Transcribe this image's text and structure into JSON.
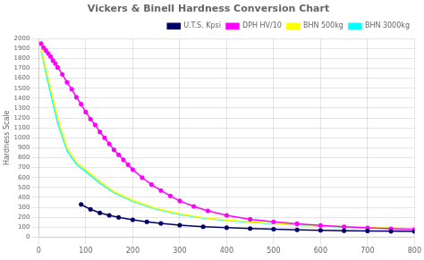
{
  "chart_data": {
    "type": "line",
    "title": "Vickers & Binell Hardness Conversion Chart",
    "ylabel": "Hardness Scale",
    "xlim": [
      0,
      800
    ],
    "xticks": [
      0,
      100,
      200,
      300,
      400,
      500,
      600,
      700,
      800
    ],
    "ylim": [
      0,
      2000
    ],
    "yticks": [
      0,
      100,
      200,
      300,
      400,
      500,
      600,
      700,
      800,
      900,
      1000,
      1100,
      1200,
      1300,
      1400,
      1500,
      1600,
      1700,
      1800,
      1900,
      2000
    ],
    "grid": true,
    "legend": "upper right",
    "series": [
      {
        "name": "U.T.S. Kpsi",
        "color": "#000066",
        "marker": "point",
        "x": [
          90,
          110,
          130,
          150,
          170,
          200,
          230,
          260,
          300,
          350,
          400,
          450,
          500,
          550,
          600,
          650,
          700,
          750,
          800
        ],
        "values": [
          330,
          280,
          245,
          220,
          200,
          175,
          155,
          138,
          120,
          105,
          95,
          87,
          80,
          74,
          69,
          65,
          62,
          59,
          57
        ]
      },
      {
        "name": "DPH HV/10",
        "color": "#ff00ff",
        "marker": "point",
        "x": [
          5,
          10,
          15,
          20,
          25,
          30,
          35,
          40,
          50,
          60,
          70,
          80,
          90,
          100,
          110,
          120,
          130,
          140,
          150,
          160,
          170,
          180,
          190,
          200,
          220,
          240,
          260,
          280,
          300,
          330,
          360,
          400,
          450,
          500,
          550,
          600,
          650,
          700,
          750,
          800
        ],
        "values": [
          1950,
          1910,
          1880,
          1850,
          1820,
          1780,
          1750,
          1710,
          1640,
          1560,
          1490,
          1410,
          1340,
          1260,
          1190,
          1130,
          1060,
          1000,
          940,
          880,
          830,
          780,
          730,
          680,
          600,
          530,
          470,
          415,
          365,
          310,
          265,
          220,
          180,
          155,
          135,
          118,
          105,
          94,
          85,
          77
        ]
      },
      {
        "name": "BHN 500kg",
        "color": "#ffff00",
        "marker": "none",
        "x": [
          5,
          20,
          40,
          60,
          80,
          100,
          130,
          160,
          200,
          250,
          300,
          350,
          400,
          450,
          500,
          550,
          600,
          650,
          700,
          750,
          800
        ],
        "values": [
          1900,
          1600,
          1200,
          900,
          760,
          680,
          560,
          460,
          370,
          290,
          235,
          198,
          172,
          155,
          140,
          128,
          116,
          107,
          99,
          91,
          84
        ]
      },
      {
        "name": "BHN 3000kg",
        "color": "#00ffff",
        "marker": "none",
        "x": [
          5,
          20,
          40,
          60,
          80,
          100,
          130,
          160,
          200,
          250,
          300,
          350,
          400,
          450,
          500,
          550,
          600,
          650,
          700,
          750,
          800
        ],
        "values": [
          1880,
          1550,
          1150,
          870,
          735,
          660,
          545,
          448,
          360,
          282,
          228,
          192,
          167,
          150,
          136,
          124,
          112,
          103,
          95,
          88,
          81
        ]
      }
    ]
  }
}
